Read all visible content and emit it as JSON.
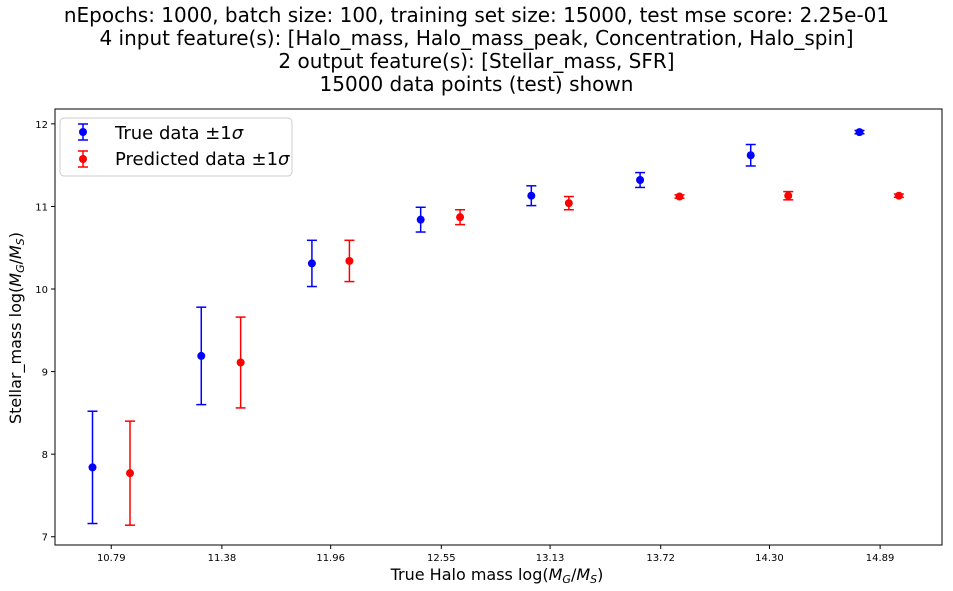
{
  "title_lines": [
    "nEpochs: 1000, batch size: 100, training set size: 15000, test mse score: 2.25e-01",
    "4 input feature(s): [Halo_mass, Halo_mass_peak, Concentration, Halo_spin]",
    "2 output feature(s): [Stellar_mass, SFR]",
    "15000 data points (test) shown"
  ],
  "chart_data": {
    "type": "scatter",
    "title": "nEpochs: 1000, batch size: 100, training set size: 15000, test mse score: 2.25e-01",
    "xlabel": "True Halo mass log(M_G/M_S)",
    "ylabel": "Stellar_mass log(M_G/M_S)",
    "xlabel_parts": {
      "prefix": "True Halo mass log(",
      "m1": "M",
      "s1": "G",
      "slash": "/",
      "m2": "M",
      "s2": "S",
      "suffix": ")"
    },
    "ylabel_parts": {
      "prefix": "Stellar_mass log(",
      "m1": "M",
      "s1": "G",
      "slash": "/",
      "m2": "M",
      "s2": "S",
      "suffix": ")"
    },
    "x_ticks": [
      "10.79",
      "11.38",
      "11.96",
      "12.55",
      "13.13",
      "13.72",
      "14.30",
      "14.89"
    ],
    "x_tick_values": [
      10.79,
      11.38,
      11.96,
      12.55,
      13.13,
      13.72,
      14.3,
      14.89
    ],
    "xlim": [
      10.49,
      15.22
    ],
    "y_ticks": [
      7,
      8,
      9,
      10,
      11,
      12
    ],
    "ylim": [
      6.9,
      12.18
    ],
    "grid": false,
    "legend_position": "top-left",
    "legend": [
      {
        "label": "True data ±1σ",
        "text": "True data ±1",
        "sigma": "σ",
        "color": "#0000ff"
      },
      {
        "label": "Predicted data ±1σ",
        "text": "Predicted data ±1",
        "sigma": "σ",
        "color": "#ff0000"
      }
    ],
    "series": [
      {
        "name": "True data ±1σ",
        "color": "#0000ff",
        "x": [
          10.69,
          11.27,
          11.86,
          12.44,
          13.03,
          13.61,
          14.2,
          14.78
        ],
        "y": [
          7.84,
          9.19,
          10.31,
          10.84,
          11.13,
          11.32,
          11.62,
          11.9
        ],
        "err": [
          0.68,
          0.59,
          0.28,
          0.15,
          0.12,
          0.09,
          0.13,
          0.02
        ]
      },
      {
        "name": "Predicted data ±1σ",
        "color": "#ff0000",
        "x": [
          10.89,
          11.48,
          12.06,
          12.65,
          13.23,
          13.82,
          14.4,
          14.99
        ],
        "y": [
          7.77,
          9.11,
          10.34,
          10.87,
          11.04,
          11.12,
          11.13,
          11.13
        ],
        "err": [
          0.63,
          0.55,
          0.25,
          0.09,
          0.08,
          0.02,
          0.05,
          0.02
        ]
      }
    ]
  }
}
